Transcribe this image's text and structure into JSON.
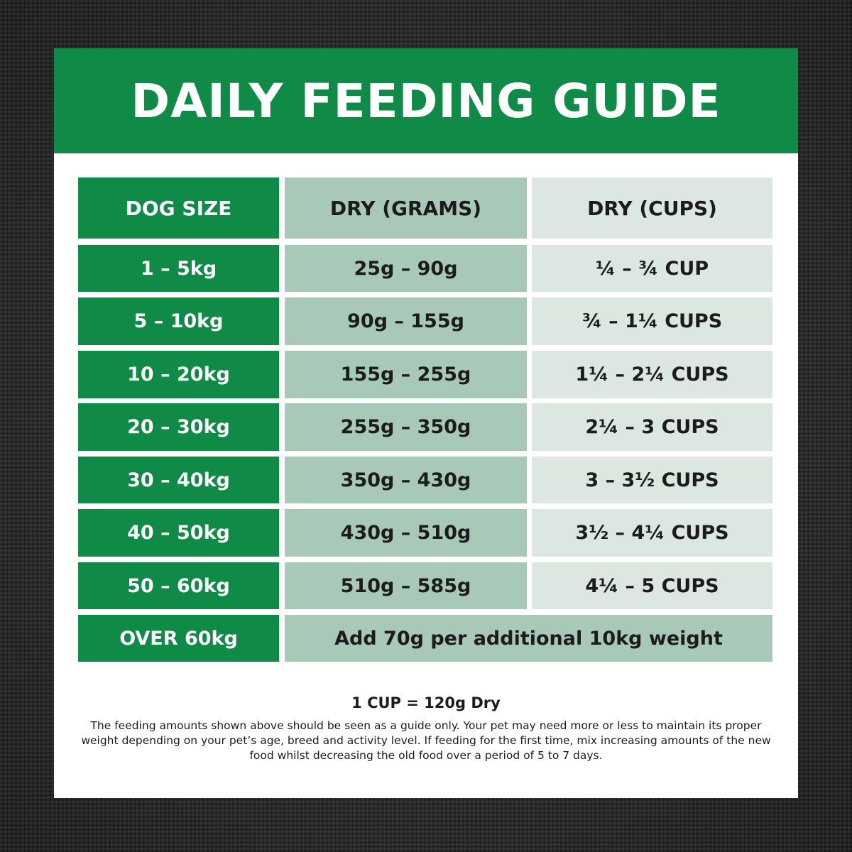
{
  "title": "DAILY FEEDING GUIDE",
  "columns": {
    "size": "DOG SIZE",
    "grams": "DRY (GRAMS)",
    "cups": "DRY (CUPS)"
  },
  "rows": [
    {
      "size": "1 – 5kg",
      "grams": "25g – 90g",
      "cups": "¼ – ¾ CUP"
    },
    {
      "size": "5 – 10kg",
      "grams": "90g – 155g",
      "cups": "¾ – 1¼ CUPS"
    },
    {
      "size": "10 – 20kg",
      "grams": "155g – 255g",
      "cups": "1¼ – 2¼ CUPS"
    },
    {
      "size": "20 – 30kg",
      "grams": "255g – 350g",
      "cups": "2¼ – 3 CUPS"
    },
    {
      "size": "30 – 40kg",
      "grams": "350g – 430g",
      "cups": "3 – 3½ CUPS"
    },
    {
      "size": "40 – 50kg",
      "grams": "430g – 510g",
      "cups": "3½ – 4¼ CUPS"
    },
    {
      "size": "50 – 60kg",
      "grams": "510g – 585g",
      "cups": "4¼ – 5 CUPS"
    }
  ],
  "over_row": {
    "size": "OVER 60kg",
    "note": "Add 70g per additional 10kg weight"
  },
  "footer": {
    "conversion": "1 CUP = 120g Dry",
    "disclaimer": "The feeding amounts shown above should be seen as a guide only. Your pet may need more or less to maintain its proper weight depending on your pet’s age, breed and activity level. If feeding for the first time, mix increasing amounts of the new food whilst decreasing the old food over a period of 5 to 7 days."
  },
  "colors": {
    "brand_green": "#0f8a47",
    "mid_green": "#a9c9b8",
    "light_green": "#dbe7e0",
    "background": "#2b2b2b"
  }
}
